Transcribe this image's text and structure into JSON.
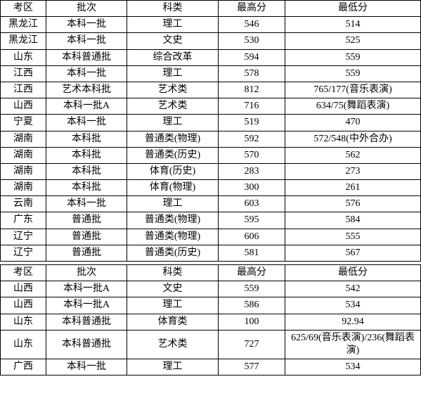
{
  "table1": {
    "columns": [
      "考区",
      "批次",
      "科类",
      "最高分",
      "最低分"
    ],
    "rows": [
      [
        "黑龙江",
        "本科一批",
        "理工",
        "546",
        "514"
      ],
      [
        "黑龙江",
        "本科一批",
        "文史",
        "530",
        "525"
      ],
      [
        "山东",
        "本科普通批",
        "综合改革",
        "594",
        "559"
      ],
      [
        "江西",
        "本科一批",
        "理工",
        "578",
        "559"
      ],
      [
        "江西",
        "艺术本科批",
        "艺术类",
        "812",
        "765/177(音乐表演)"
      ],
      [
        "山西",
        "本科一批A",
        "艺术类",
        "716",
        "634/75(舞蹈表演)"
      ],
      [
        "宁夏",
        "本科一批",
        "理工",
        "519",
        "470"
      ],
      [
        "湖南",
        "本科批",
        "普通类(物理)",
        "592",
        "572/548(中外合办)"
      ],
      [
        "湖南",
        "本科批",
        "普通类(历史)",
        "570",
        "562"
      ],
      [
        "湖南",
        "本科批",
        "体育(历史)",
        "283",
        "273"
      ],
      [
        "湖南",
        "本科批",
        "体育(物理)",
        "300",
        "261"
      ],
      [
        "云南",
        "本科一批",
        "理工",
        "603",
        "576"
      ],
      [
        "广东",
        "普通批",
        "普通类(物理)",
        "595",
        "584"
      ],
      [
        "辽宁",
        "普通批",
        "普通类(物理)",
        "606",
        "555"
      ],
      [
        "辽宁",
        "普通批",
        "普通类(历史)",
        "581",
        "567"
      ]
    ]
  },
  "table2": {
    "columns": [
      "考区",
      "批次",
      "科类",
      "最高分",
      "最低分"
    ],
    "rows": [
      [
        "山西",
        "本科一批A",
        "文史",
        "559",
        "542"
      ],
      [
        "山西",
        "本科一批A",
        "理工",
        "586",
        "534"
      ],
      [
        "山东",
        "本科普通批",
        "体育类",
        "100",
        "92.94"
      ],
      [
        "山东",
        "本科普通批",
        "艺术类",
        "727",
        "625/69(音乐表演)/236(舞蹈表演)"
      ],
      [
        "广西",
        "本科一批",
        "理工",
        "577",
        "534"
      ]
    ]
  }
}
